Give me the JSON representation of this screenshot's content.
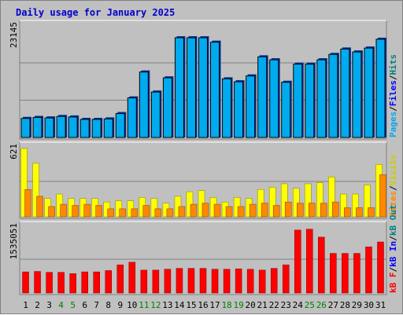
{
  "chart_data": {
    "title": "Daily usage for January 2025",
    "type": "bar",
    "categories": [
      "1",
      "2",
      "3",
      "4",
      "5",
      "6",
      "7",
      "8",
      "9",
      "10",
      "11",
      "12",
      "13",
      "14",
      "15",
      "16",
      "17",
      "18",
      "19",
      "20",
      "21",
      "22",
      "23",
      "24",
      "25",
      "26",
      "27",
      "28",
      "29",
      "30",
      "31"
    ],
    "weekend_days": [
      "4",
      "5",
      "11",
      "12",
      "18",
      "19",
      "25",
      "26"
    ],
    "colors": {
      "title": "#0000cc",
      "background": "#c0c0c0",
      "panel": "#c0c0c0",
      "grid": "#808080",
      "weekday_label": "#000000",
      "weekend_label": "#008000",
      "hits": "#00cccc",
      "files": "#0000ff",
      "pages": "#00aaee",
      "visits": "#ffff00",
      "sites": "#ff8800",
      "kb": "#ff0000",
      "kb_in": "#0000ff",
      "kb_out": "#008080"
    },
    "panels": [
      {
        "ymax_label": "23145",
        "ymax": 23145,
        "legend": [
          {
            "text": "Pages",
            "color": "#00aaee"
          },
          {
            "text": "/",
            "color": "#000000"
          },
          {
            "text": "Files",
            "color": "#0000ff"
          },
          {
            "text": "/",
            "color": "#000000"
          },
          {
            "text": "Hits",
            "color": "#008080"
          }
        ],
        "series": [
          {
            "name": "Hits",
            "color": "#00cccc",
            "values": [
              3900,
              4100,
              4000,
              4300,
              4200,
              3700,
              3700,
              3800,
              4900,
              8100,
              13400,
              9300,
              12200,
              20400,
              20400,
              20400,
              19500,
              12000,
              11400,
              12600,
              16500,
              15900,
              11300,
              15000,
              15000,
              15900,
              17000,
              18100,
              17500,
              18300,
              20100
            ]
          },
          {
            "name": "Files",
            "color": "#0000ff",
            "values": [
              3900,
              4100,
              4000,
              4300,
              4200,
              3700,
              3700,
              3800,
              4900,
              8100,
              13400,
              9300,
              12200,
              20400,
              20400,
              20400,
              19500,
              12000,
              11400,
              12600,
              16500,
              15900,
              11300,
              15000,
              15000,
              15900,
              17000,
              18100,
              17500,
              18300,
              20100
            ]
          },
          {
            "name": "Pages",
            "color": "#00aaee",
            "values": [
              3900,
              4100,
              4000,
              4300,
              4200,
              3700,
              3700,
              3800,
              4900,
              8100,
              13400,
              9300,
              12200,
              20400,
              20400,
              20400,
              19500,
              12000,
              11400,
              12600,
              16500,
              15900,
              11300,
              15000,
              15000,
              15900,
              17000,
              18100,
              17500,
              18300,
              20100
            ]
          }
        ]
      },
      {
        "ymax_label": "621",
        "ymax": 621,
        "legend": [
          {
            "text": "Sites",
            "color": "#ff8800"
          },
          {
            "text": "/",
            "color": "#000000"
          },
          {
            "text": "Visits",
            "color": "#cccc00"
          }
        ],
        "series": [
          {
            "name": "Visits",
            "color": "#ffff00",
            "values": [
              600,
              470,
              160,
              200,
              160,
              160,
              160,
              130,
              140,
              140,
              170,
              160,
              120,
              180,
              220,
              230,
              170,
              130,
              170,
              160,
              240,
              260,
              290,
              250,
              290,
              300,
              350,
              200,
              200,
              280,
              460
            ]
          },
          {
            "name": "Sites",
            "color": "#ff8800",
            "values": [
              240,
              180,
              90,
              110,
              100,
              110,
              100,
              70,
              70,
              70,
              100,
              70,
              70,
              90,
              110,
              120,
              110,
              90,
              90,
              110,
              120,
              100,
              130,
              120,
              120,
              120,
              130,
              80,
              80,
              80,
              370
            ]
          }
        ]
      },
      {
        "ymax_label": "1535051",
        "ymax": 1535051,
        "legend": [
          {
            "text": "kB F",
            "color": "#ff0000"
          },
          {
            "text": "/",
            "color": "#000000"
          },
          {
            "text": "kB In",
            "color": "#0000ff"
          },
          {
            "text": "/",
            "color": "#000000"
          },
          {
            "text": "kB Out",
            "color": "#008080"
          }
        ],
        "series": [
          {
            "name": "kB F",
            "color": "#ff0000",
            "values": [
              480000,
              490000,
              470000,
              470000,
              440000,
              480000,
              480000,
              510000,
              640000,
              700000,
              520000,
              520000,
              540000,
              560000,
              560000,
              560000,
              540000,
              540000,
              550000,
              540000,
              520000,
              560000,
              640000,
              1430000,
              1450000,
              1270000,
              900000,
              900000,
              900000,
              1050000,
              1160000
            ]
          }
        ]
      }
    ]
  }
}
